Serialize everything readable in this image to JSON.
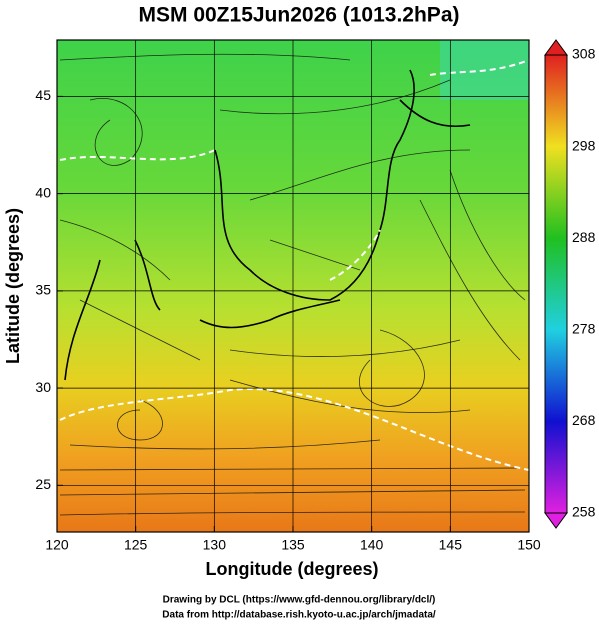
{
  "map": {
    "title": "MSM 00Z15Jun2026 (1013.2hPa)",
    "x_label": "Longitude (degrees)",
    "y_label": "Latitude  (degrees)",
    "xlim": [
      120,
      150
    ],
    "ylim": [
      22.6,
      47.9
    ],
    "xticks": [
      120,
      125,
      130,
      135,
      140,
      145,
      150
    ],
    "yticks": [
      25,
      30,
      35,
      40,
      45
    ],
    "colorbar": {
      "lim": [
        258,
        308
      ],
      "ticks": [
        258,
        268,
        278,
        288,
        298,
        308
      ]
    },
    "footer": [
      "Drawing by DCL (https://www.gfd-dennou.org/library/dcl/)",
      "Data from http://database.rish.kyoto-u.ac.jp/arch/jmadata/"
    ]
  }
}
